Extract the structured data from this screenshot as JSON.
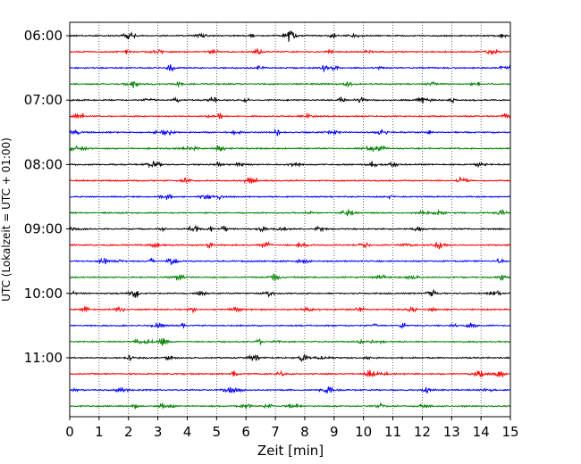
{
  "chart_data": {
    "type": "line",
    "title": "",
    "xlabel": "Zeit  [min]",
    "ylabel": "UTC (Lokalzeit = UTC + 01:00)",
    "xlim": [
      0,
      15
    ],
    "x_ticks": [
      0,
      1,
      2,
      3,
      4,
      5,
      6,
      7,
      8,
      9,
      10,
      11,
      12,
      13,
      14,
      15
    ],
    "y_tick_labels": [
      "06:00",
      "07:00",
      "08:00",
      "09:00",
      "10:00",
      "11:00"
    ],
    "trace_interval_min": 15,
    "grid": "vertical dotted at each minute",
    "trace_colors": [
      "#000000",
      "#ff0000",
      "#0000ff",
      "#008000"
    ],
    "traces": [
      {
        "start": "06:00"
      },
      {
        "start": "06:15"
      },
      {
        "start": "06:30"
      },
      {
        "start": "06:45"
      },
      {
        "start": "07:00"
      },
      {
        "start": "07:15"
      },
      {
        "start": "07:30"
      },
      {
        "start": "07:45"
      },
      {
        "start": "08:00"
      },
      {
        "start": "08:15"
      },
      {
        "start": "08:30"
      },
      {
        "start": "08:45"
      },
      {
        "start": "09:00"
      },
      {
        "start": "09:15"
      },
      {
        "start": "09:30"
      },
      {
        "start": "09:45"
      },
      {
        "start": "10:00"
      },
      {
        "start": "10:15"
      },
      {
        "start": "10:30"
      },
      {
        "start": "10:45"
      },
      {
        "start": "11:00"
      },
      {
        "start": "11:15"
      },
      {
        "start": "11:30"
      },
      {
        "start": "11:45"
      }
    ]
  }
}
